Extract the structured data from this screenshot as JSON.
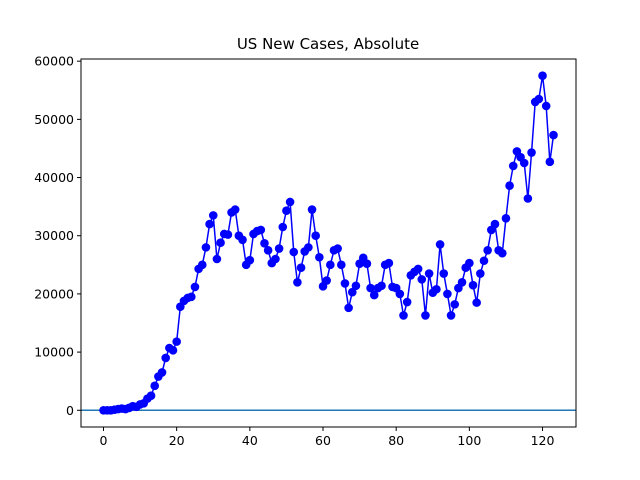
{
  "chart_data": {
    "type": "line",
    "title": "US New Cases, Absolute",
    "x": [
      0,
      1,
      2,
      3,
      4,
      5,
      6,
      7,
      8,
      9,
      10,
      11,
      12,
      13,
      14,
      15,
      16,
      17,
      18,
      19,
      20,
      21,
      22,
      23,
      24,
      25,
      26,
      27,
      28,
      29,
      30,
      31,
      32,
      33,
      34,
      35,
      36,
      37,
      38,
      39,
      40,
      41,
      42,
      43,
      44,
      45,
      46,
      47,
      48,
      49,
      50,
      51,
      52,
      53,
      54,
      55,
      56,
      57,
      58,
      59,
      60,
      61,
      62,
      63,
      64,
      65,
      66,
      67,
      68,
      69,
      70,
      71,
      72,
      73,
      74,
      75,
      76,
      77,
      78,
      79,
      80,
      81,
      82,
      83,
      84,
      85,
      86,
      87,
      88,
      89,
      90,
      91,
      92,
      93,
      94,
      95,
      96,
      97,
      98,
      99,
      100,
      101,
      102,
      103,
      104,
      105,
      106,
      107,
      108,
      109,
      110,
      111,
      112,
      113,
      114,
      115,
      116,
      117,
      118,
      119,
      120,
      121,
      122,
      123
    ],
    "series": [
      {
        "color": "#0000ff",
        "marker": "o",
        "values": [
          0,
          0,
          0,
          100,
          200,
          300,
          200,
          400,
          700,
          600,
          1000,
          1200,
          2000,
          2500,
          4200,
          5800,
          6500,
          9000,
          10700,
          10300,
          11800,
          17800,
          18800,
          19300,
          19500,
          21200,
          24300,
          25000,
          28000,
          32000,
          33500,
          26000,
          28800,
          30300,
          30200,
          34000,
          34500,
          30000,
          29300,
          25000,
          25800,
          30300,
          30800,
          31000,
          28700,
          27500,
          25300,
          26000,
          27800,
          31500,
          34300,
          35800,
          27200,
          22000,
          24500,
          27300,
          28000,
          34500,
          30000,
          26300,
          21300,
          22300,
          25000,
          27500,
          27800,
          25000,
          21800,
          17600,
          20300,
          21400,
          25200,
          26200,
          25200,
          21000,
          19800,
          21000,
          21400,
          25000,
          25300,
          21200,
          21000,
          20000,
          16300,
          18600,
          23200,
          23800,
          24300,
          22500,
          16300,
          23500,
          20200,
          20800,
          28500,
          23500,
          20000,
          16300,
          18200,
          21000,
          22000,
          24500,
          25300,
          21500,
          18500,
          23500,
          25700,
          27500,
          31000,
          32000,
          27500,
          27000,
          33000,
          38600,
          42000,
          44500,
          43500,
          42500,
          36400,
          44300,
          53000,
          53500,
          57500,
          52300,
          42700,
          47300
        ]
      }
    ],
    "hline": {
      "value": 0,
      "color": "#1f77b4"
    },
    "xlim": [
      -6.15,
      129.15
    ],
    "xticks": [
      0,
      20,
      40,
      60,
      80,
      100,
      120
    ],
    "ylim": [
      -2875,
      60375
    ],
    "yticks": [
      0,
      10000,
      20000,
      30000,
      40000,
      50000,
      60000
    ]
  }
}
